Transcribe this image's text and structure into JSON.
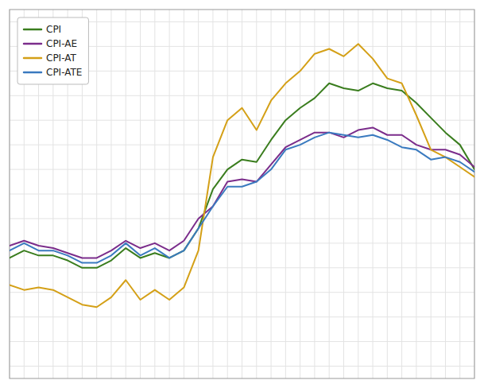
{
  "chart_data": {
    "type": "line",
    "categories": [
      null,
      null,
      null,
      null,
      null,
      null,
      null,
      null,
      null,
      null,
      null,
      null,
      null,
      null,
      null,
      null,
      null,
      null,
      null,
      null,
      null,
      null,
      null,
      null,
      null,
      null,
      null,
      null,
      null,
      null,
      null,
      null,
      null
    ],
    "series": [
      {
        "name": "CPI",
        "color": "#3a7d1e",
        "values": [
          1.4,
          1.7,
          1.5,
          1.5,
          1.3,
          1.0,
          1.0,
          1.3,
          1.8,
          1.4,
          1.6,
          1.4,
          1.7,
          2.6,
          4.2,
          5.0,
          5.4,
          5.3,
          6.2,
          7.0,
          7.5,
          7.9,
          8.5,
          8.3,
          8.2,
          8.5,
          8.3,
          8.2,
          7.7,
          7.1,
          6.5,
          6.0,
          5.0
        ]
      },
      {
        "name": "CPI-AE",
        "color": "#7b2d8b",
        "values": [
          1.9,
          2.1,
          1.9,
          1.8,
          1.6,
          1.4,
          1.4,
          1.7,
          2.1,
          1.8,
          2.0,
          1.7,
          2.1,
          3.0,
          3.5,
          4.5,
          4.6,
          4.5,
          5.2,
          5.9,
          6.2,
          6.5,
          6.5,
          6.3,
          6.6,
          6.7,
          6.4,
          6.4,
          6.0,
          5.8,
          5.8,
          5.6,
          5.1
        ]
      },
      {
        "name": "CPI-AT",
        "color": "#d4a017",
        "values": [
          0.3,
          0.1,
          0.2,
          0.1,
          -0.2,
          -0.5,
          -0.6,
          -0.2,
          0.5,
          -0.3,
          0.1,
          -0.3,
          0.2,
          1.7,
          5.5,
          7.0,
          7.5,
          6.6,
          7.8,
          8.5,
          9.0,
          9.7,
          9.9,
          9.6,
          10.1,
          9.5,
          8.7,
          8.5,
          7.2,
          5.8,
          5.5,
          5.1,
          4.7
        ]
      },
      {
        "name": "CPI-ATE",
        "color": "#3a7abf",
        "values": [
          1.7,
          2.0,
          1.7,
          1.7,
          1.5,
          1.2,
          1.2,
          1.5,
          2.0,
          1.5,
          1.8,
          1.4,
          1.7,
          2.6,
          3.5,
          4.3,
          4.3,
          4.5,
          5.0,
          5.8,
          6.0,
          6.3,
          6.5,
          6.4,
          6.3,
          6.4,
          6.2,
          5.9,
          5.8,
          5.4,
          5.5,
          5.3,
          4.9
        ]
      }
    ],
    "ylim": [
      -3.5,
      11.5
    ],
    "yticks": [
      -3,
      -2,
      -1,
      0,
      1,
      2,
      3,
      4,
      5,
      6,
      7,
      8,
      9,
      10,
      11
    ],
    "grid": true,
    "legend": "upper left",
    "tick_labels": false
  }
}
